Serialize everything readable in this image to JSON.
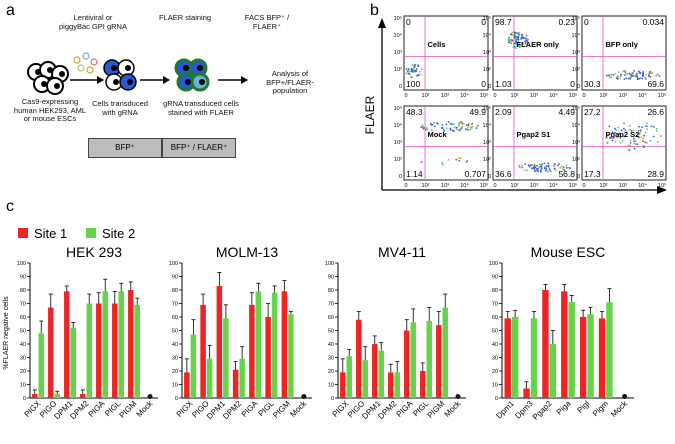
{
  "panel_labels": [
    "a",
    "b",
    "c"
  ],
  "panel_a": {
    "step1_label": "Lentiviral or piggyBac GPI gRNA",
    "step2_label": "FLAER staining",
    "step3_label": "FACS BFP⁺ / FLAER⁺",
    "cells1_label": "Cas9-expressing human HEK293, AML or mouse ESCs",
    "cells2_label": "Cells transduced with gRNA",
    "cells3_label": "gRNA transduced cells stained with FLAER",
    "result_label": "Analysis of BFP+/FLAER- population",
    "box1": "BFP⁺",
    "box2": "BFP⁺ / FLAER⁺"
  },
  "panel_b": {
    "y_axis_label": "FLAER",
    "x_axis_label": "BFP",
    "ticks": [
      "10⁵",
      "10⁴",
      "10³",
      "10²",
      "0",
      "0",
      "10²",
      "10³",
      "10⁴",
      "10⁵"
    ],
    "plots": [
      {
        "name": "Cells",
        "tl": "0",
        "tr": "0",
        "bl": "100",
        "br": "0"
      },
      {
        "name": "FLAER only",
        "tl": "98.7",
        "tr": "0.23",
        "bl": "1.03",
        "br": "0"
      },
      {
        "name": "BFP only",
        "tl": "0",
        "tr": "0.034",
        "bl": "30.3",
        "br": "69.6"
      },
      {
        "name": "Mock",
        "tl": "48.3",
        "tr": "49.9",
        "bl": "1.14",
        "br": "0.707"
      },
      {
        "name": "Pgap2 S1",
        "tl": "2.09",
        "tr": "4.49",
        "bl": "36.6",
        "br": "56.8"
      },
      {
        "name": "Pgap2 S2",
        "tl": "27.2",
        "tr": "26.6",
        "bl": "17.3",
        "br": "28.9"
      }
    ]
  },
  "legend": {
    "site1": "Site 1",
    "site2": "Site 2",
    "site1_color": "#ee2424",
    "site2_color": "#66d44a"
  },
  "mock_color": "#111111",
  "chart_data": [
    {
      "type": "bar",
      "title": "HEK 293",
      "ylabel": "%FLAER negative cells",
      "ylim": [
        0,
        100
      ],
      "yticks": [
        "0",
        "10",
        "20",
        "30",
        "40",
        "50",
        "60",
        "70",
        "80",
        "90",
        "100"
      ],
      "categories": [
        "PIGX",
        "PIGO",
        "DPM1",
        "DPM2",
        "PIGA",
        "PIGL",
        "PIGM",
        "Mock"
      ],
      "series": [
        {
          "name": "Site 1",
          "values": [
            3,
            67,
            79,
            3,
            70,
            70,
            80,
            1
          ],
          "errors": [
            3,
            10,
            4,
            3,
            8,
            9,
            6,
            0
          ]
        },
        {
          "name": "Site 2",
          "values": [
            48,
            3,
            52,
            70,
            79,
            79,
            69,
            null
          ],
          "errors": [
            9,
            2,
            4,
            7,
            9,
            6,
            5,
            null
          ]
        }
      ]
    },
    {
      "type": "bar",
      "title": "MOLM-13",
      "ylim": [
        0,
        100
      ],
      "categories": [
        "PIGX",
        "PIGO",
        "DPM1",
        "DPM2",
        "PIGA",
        "PIGL",
        "PIGM",
        "Mock"
      ],
      "series": [
        {
          "name": "Site 1",
          "values": [
            19,
            69,
            83,
            21,
            69,
            60,
            79,
            1
          ],
          "errors": [
            10,
            8,
            10,
            6,
            9,
            10,
            8,
            0
          ]
        },
        {
          "name": "Site 2",
          "values": [
            47,
            29,
            59,
            29,
            79,
            78,
            62,
            null
          ],
          "errors": [
            11,
            10,
            10,
            9,
            6,
            5,
            2,
            null
          ]
        }
      ]
    },
    {
      "type": "bar",
      "title": "MV4-11",
      "ylim": [
        0,
        100
      ],
      "categories": [
        "PIGX",
        "PIGO",
        "DPM1",
        "DPM2",
        "PIGA",
        "PIGL",
        "PIGM",
        "Mock"
      ],
      "series": [
        {
          "name": "Site 1",
          "values": [
            19,
            58,
            40,
            19,
            50,
            20,
            54,
            1
          ],
          "errors": [
            10,
            6,
            6,
            6,
            8,
            6,
            10,
            0
          ]
        },
        {
          "name": "Site 2",
          "values": [
            31,
            28,
            35,
            19,
            56,
            57,
            67,
            null
          ],
          "errors": [
            5,
            10,
            6,
            8,
            10,
            10,
            10,
            null
          ]
        }
      ]
    },
    {
      "type": "bar",
      "title": "Mouse  ESC",
      "ylim": [
        0,
        100
      ],
      "categories": [
        "Dpm1",
        "Dpm3",
        "Pgap2",
        "Piga",
        "Pigl",
        "Pigm",
        "Mock"
      ],
      "series": [
        {
          "name": "Site 1",
          "values": [
            59,
            7,
            80,
            79,
            60,
            59,
            1
          ],
          "errors": [
            5,
            5,
            4,
            5,
            5,
            5,
            0
          ]
        },
        {
          "name": "Site 2",
          "values": [
            60,
            59,
            40,
            71,
            62,
            71,
            null
          ],
          "errors": [
            5,
            5,
            10,
            5,
            5,
            10,
            null
          ]
        }
      ]
    }
  ]
}
